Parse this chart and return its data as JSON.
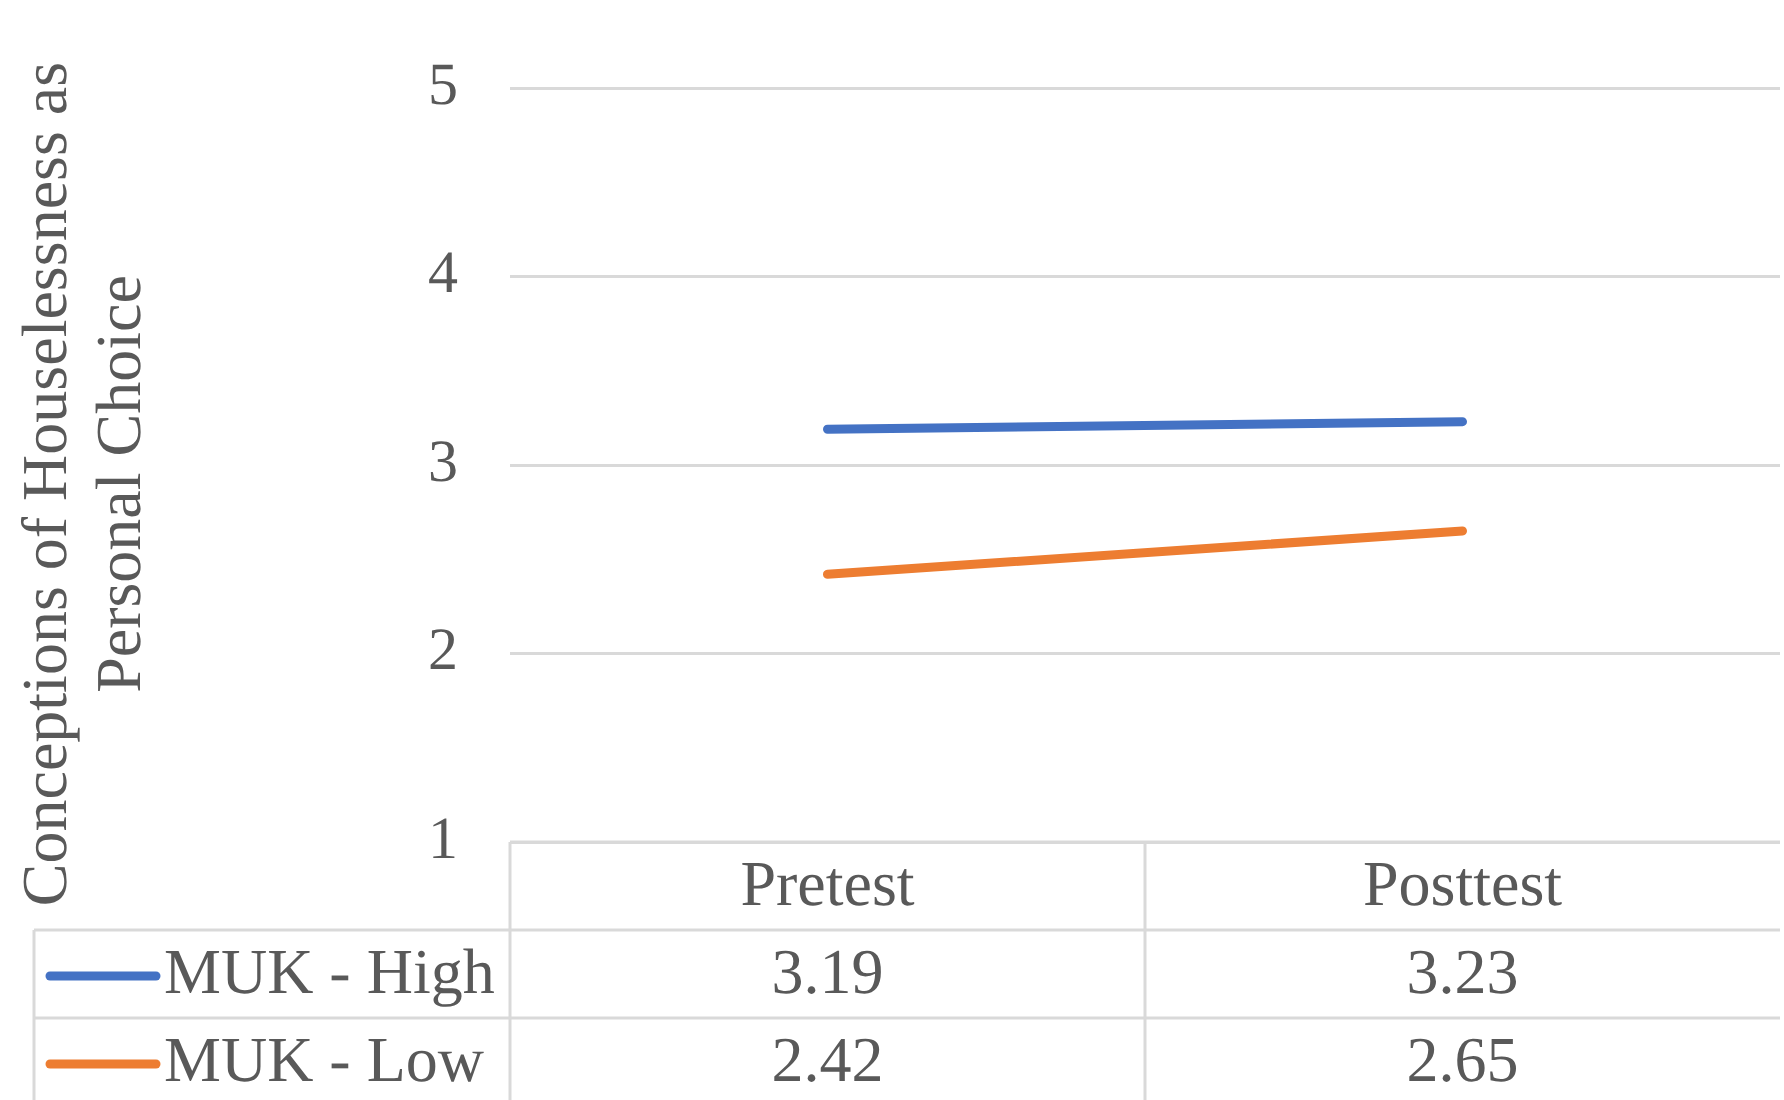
{
  "chart_data": {
    "type": "line",
    "ylabel": "Conceptions of Houselessness as Personal Choice",
    "categories": [
      "Pretest",
      "Posttest"
    ],
    "series": [
      {
        "name": "MUK - High",
        "color": "#4472c4",
        "values": [
          3.19,
          3.23
        ]
      },
      {
        "name": "MUK - Low",
        "color": "#ed7d31",
        "values": [
          2.42,
          2.65
        ]
      }
    ],
    "ylim": [
      1,
      5
    ],
    "yticks": [
      1,
      2,
      3,
      4,
      5
    ],
    "grid": "y",
    "legend": "bottom",
    "data_labels": true,
    "line_style": "solid"
  }
}
